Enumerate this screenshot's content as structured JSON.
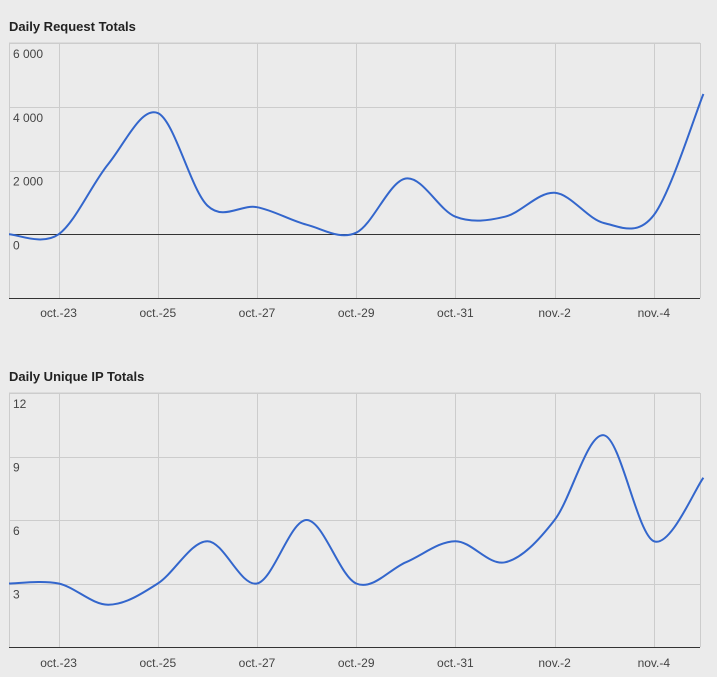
{
  "chart_data": [
    {
      "type": "line",
      "title": "Daily Request Totals",
      "xlabel": "",
      "ylabel": "",
      "x_tick_labels": [
        "oct.-23",
        "oct.-25",
        "oct.-27",
        "oct.-29",
        "oct.-31",
        "nov.-2",
        "nov.-4"
      ],
      "y_tick_labels": [
        "6 000",
        "4 000",
        "2 000",
        "0"
      ],
      "y_ticks": [
        6000,
        4000,
        2000,
        0
      ],
      "ylim": [
        -2000,
        6000
      ],
      "x": [
        "oct.-22",
        "oct.-23",
        "oct.-24",
        "oct.-25",
        "oct.-26",
        "oct.-27",
        "oct.-28",
        "oct.-29",
        "oct.-30",
        "oct.-31",
        "nov.-1",
        "nov.-2",
        "nov.-3",
        "nov.-4",
        "nov.-5"
      ],
      "series": [
        {
          "values": [
            0,
            0,
            2200,
            3800,
            900,
            850,
            300,
            50,
            1750,
            550,
            550,
            1300,
            350,
            600,
            4400
          ]
        }
      ],
      "color": "#3366cc",
      "grid": true,
      "zero_line": true
    },
    {
      "type": "line",
      "title": "Daily Unique IP Totals",
      "xlabel": "",
      "ylabel": "",
      "x_tick_labels": [
        "oct.-23",
        "oct.-25",
        "oct.-27",
        "oct.-29",
        "oct.-31",
        "nov.-2",
        "nov.-4"
      ],
      "y_tick_labels": [
        "12",
        "9",
        "6",
        "3"
      ],
      "y_ticks": [
        12,
        9,
        6,
        3
      ],
      "ylim": [
        0,
        12
      ],
      "x": [
        "oct.-22",
        "oct.-23",
        "oct.-24",
        "oct.-25",
        "oct.-26",
        "oct.-27",
        "oct.-28",
        "oct.-29",
        "oct.-30",
        "oct.-31",
        "nov.-1",
        "nov.-2",
        "nov.-3",
        "nov.-4",
        "nov.-5"
      ],
      "series": [
        {
          "values": [
            3,
            3,
            2,
            3,
            5,
            3,
            6,
            3,
            4,
            5,
            4,
            6,
            10,
            5,
            8
          ]
        }
      ],
      "color": "#3366cc",
      "grid": true,
      "zero_line": false
    }
  ]
}
